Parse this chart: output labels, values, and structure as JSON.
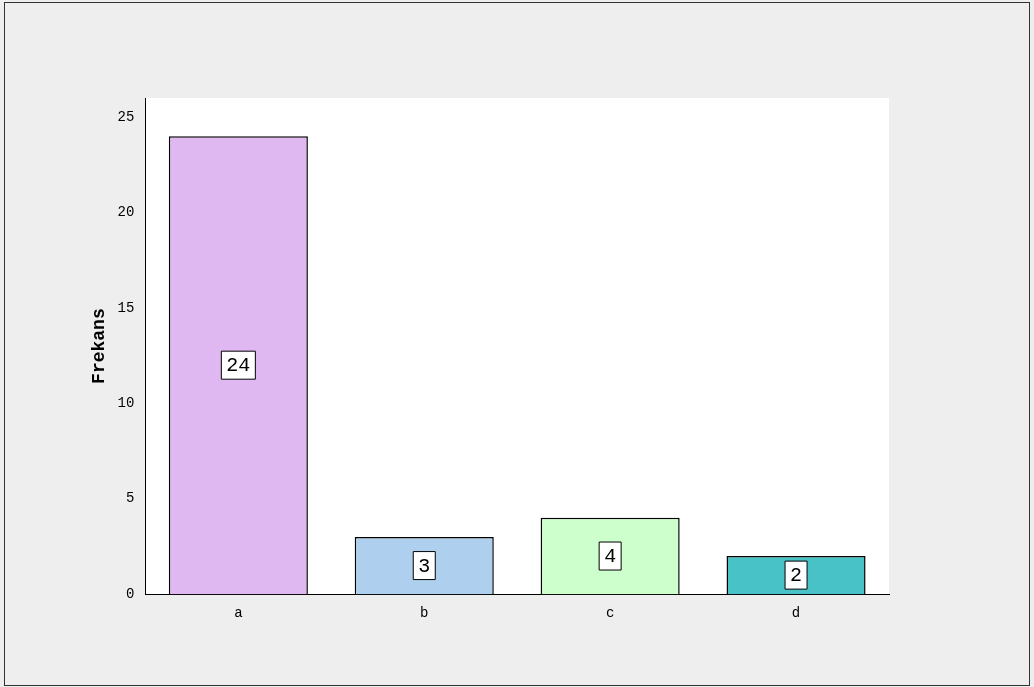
{
  "chart_data": {
    "type": "bar",
    "ylabel": "Frekans",
    "categories": [
      "a",
      "b",
      "c",
      "d"
    ],
    "values": [
      24,
      3,
      4,
      2
    ],
    "colors": [
      "#dfb8f2",
      "#aed0ee",
      "#ccffcc",
      "#48c2c6"
    ],
    "ylim": [
      0,
      26
    ],
    "yticks": [
      0,
      5,
      10,
      15,
      20,
      25
    ],
    "grid": false,
    "legend": false,
    "data_labels": true
  }
}
